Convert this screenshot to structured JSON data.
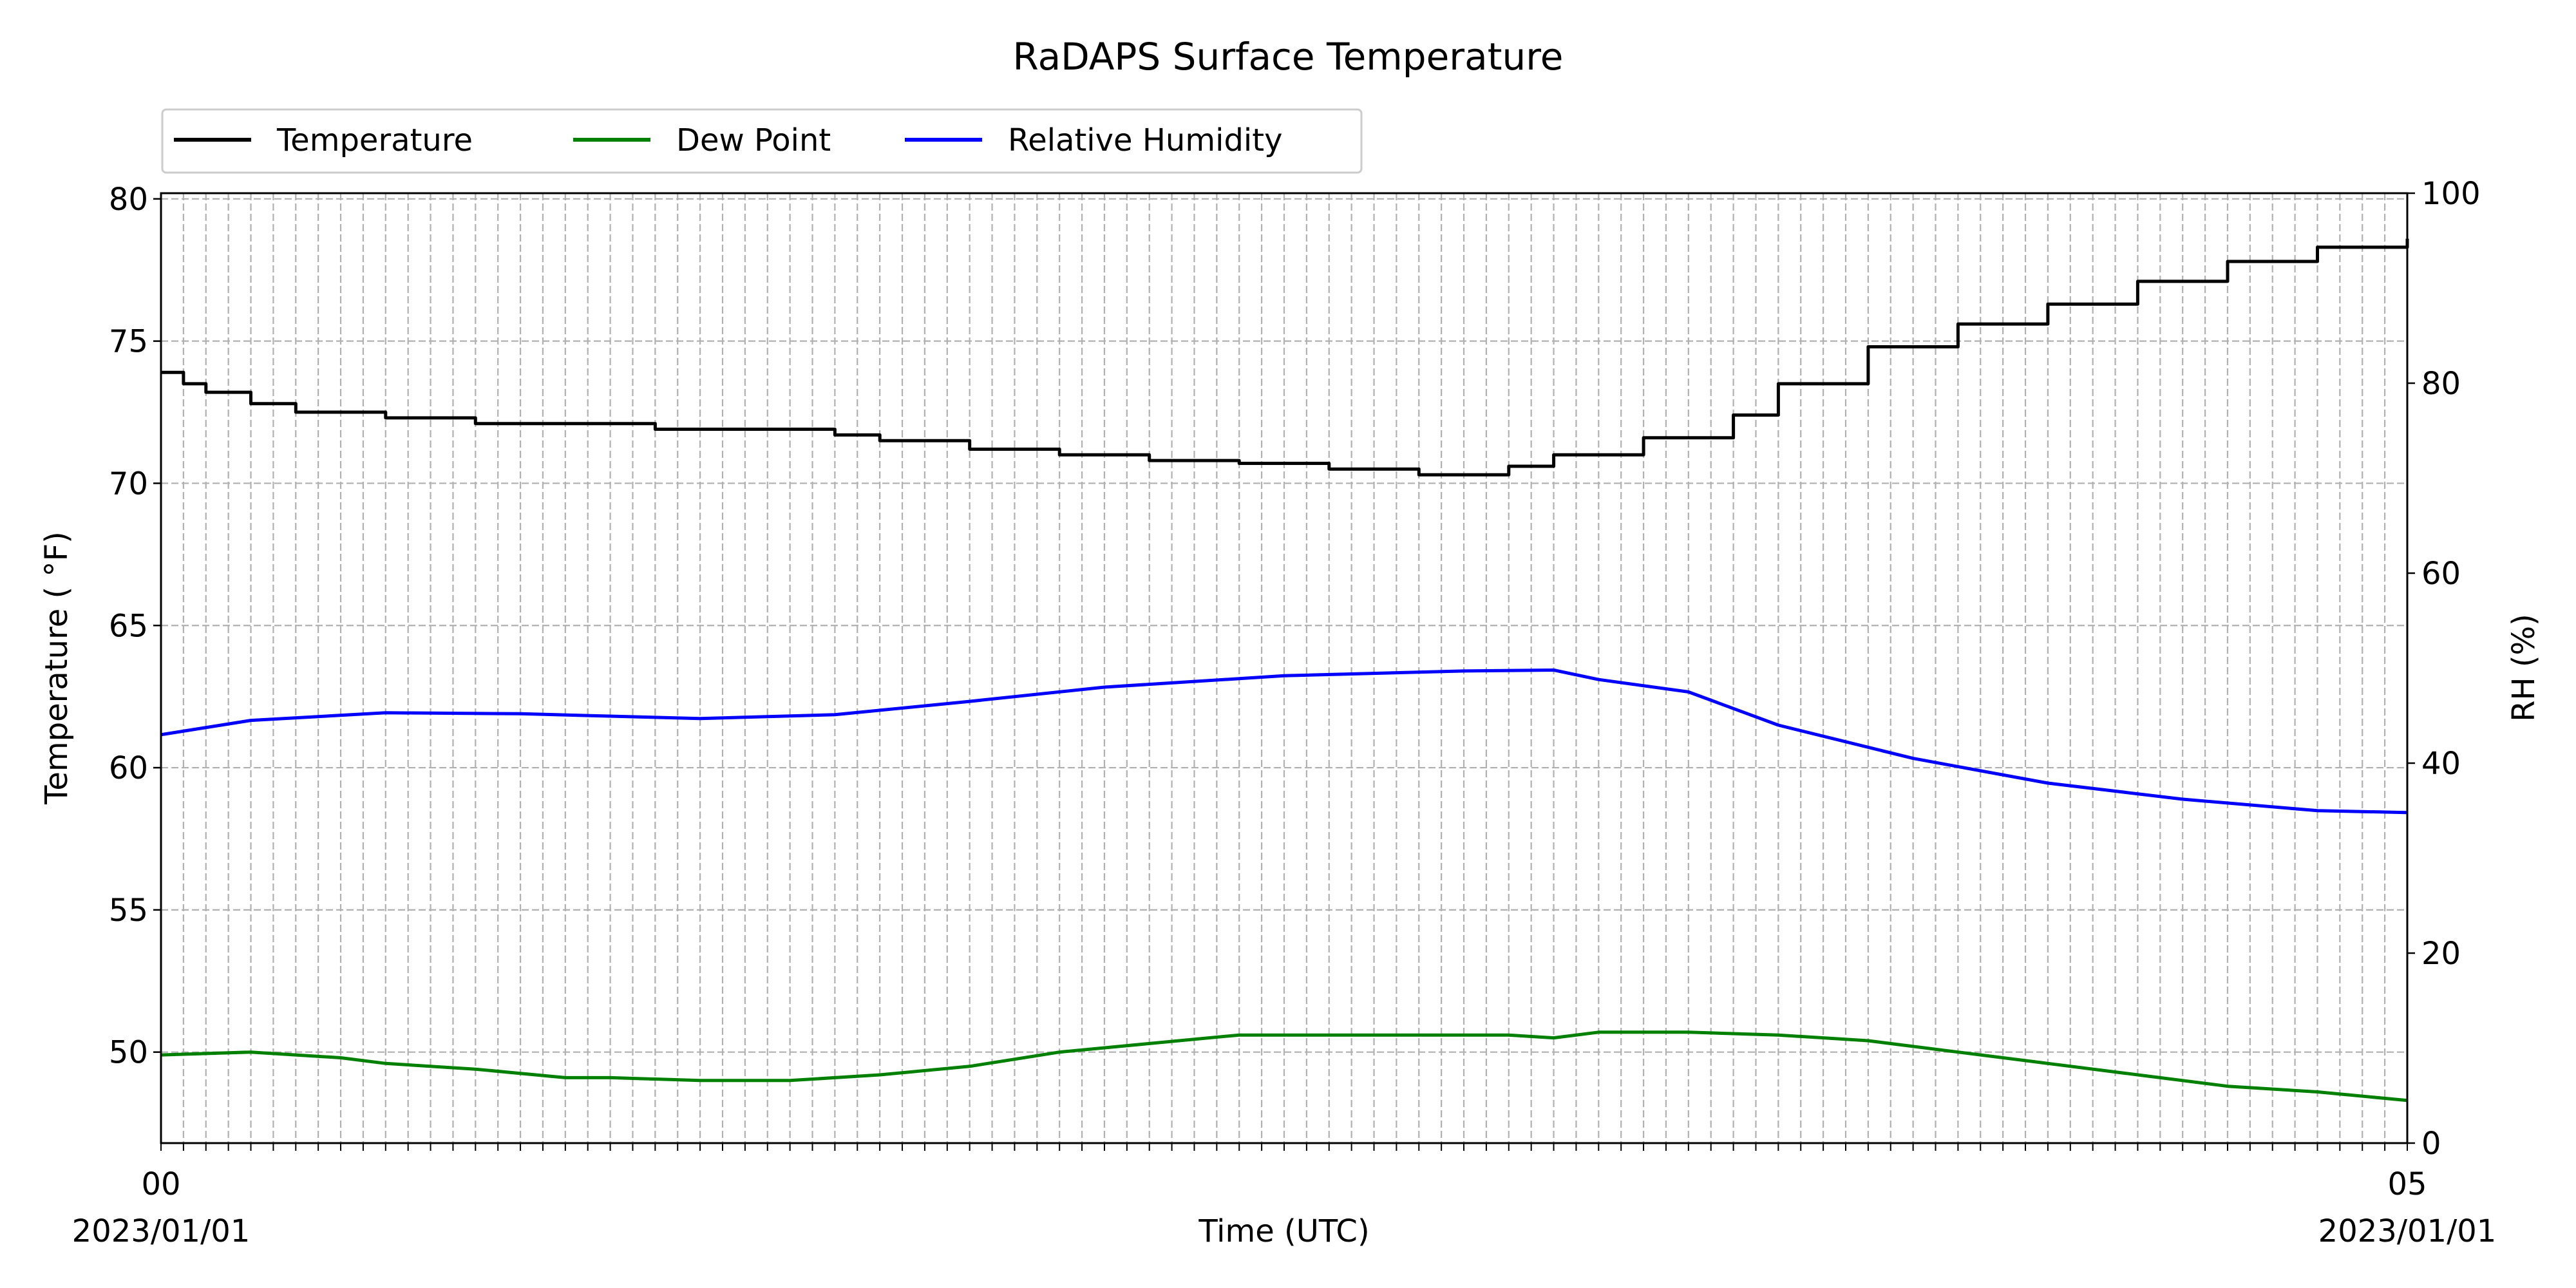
{
  "chart_data": {
    "type": "line",
    "title": "RaDAPS Surface Temperature",
    "xlabel": "Time (UTC)",
    "ylabel_left": "Temperature ( °F)",
    "ylabel_right": "RH (%)",
    "date_left": "2023/01/01",
    "date_right": "2023/01/01",
    "x_tick_labels": [
      "00:00",
      "00:05"
    ],
    "x_tick_labels_display": [
      "00",
      "05"
    ],
    "x_range_minutes": [
      0,
      5
    ],
    "ylim_left": [
      46.8,
      80.2
    ],
    "ylim_right": [
      0,
      100
    ],
    "yticks_left": [
      50,
      55,
      60,
      65,
      70,
      75,
      80
    ],
    "yticks_right": [
      0,
      20,
      40,
      60,
      80,
      100
    ],
    "grid": true,
    "legend": {
      "placement": "top-left, above plot",
      "entries": [
        "Temperature",
        "Dew Point",
        "Relative Humidity"
      ]
    },
    "colors": {
      "Temperature": "#000000",
      "Dew Point": "#008000",
      "Relative Humidity": "#0000ff"
    },
    "series": [
      {
        "name": "Temperature",
        "axis": "left",
        "x": [
          0,
          0.05,
          0.1,
          0.2,
          0.3,
          0.5,
          0.7,
          1.0,
          1.1,
          1.3,
          1.5,
          1.6,
          1.8,
          2.0,
          2.2,
          2.4,
          2.5,
          2.6,
          2.65,
          2.8,
          2.9,
          3.0,
          3.1,
          3.3,
          3.5,
          3.6,
          3.8,
          4.0,
          4.2,
          4.4,
          4.6,
          4.8,
          5.0
        ],
        "y": [
          73.9,
          73.5,
          73.2,
          72.8,
          72.5,
          72.3,
          72.1,
          72.1,
          71.9,
          71.9,
          71.7,
          71.5,
          71.2,
          71.0,
          70.8,
          70.7,
          70.7,
          70.5,
          70.5,
          70.3,
          70.3,
          70.6,
          71.0,
          71.6,
          72.4,
          73.5,
          74.8,
          75.6,
          76.3,
          77.1,
          77.8,
          78.3,
          78.6
        ]
      },
      {
        "name": "Dew Point",
        "axis": "left",
        "x": [
          0,
          0.2,
          0.4,
          0.5,
          0.7,
          0.9,
          1.0,
          1.2,
          1.4,
          1.6,
          1.8,
          2.0,
          2.2,
          2.4,
          2.6,
          2.8,
          3.0,
          3.1,
          3.2,
          3.4,
          3.6,
          3.8,
          4.0,
          4.2,
          4.4,
          4.6,
          4.8,
          5.0
        ],
        "y": [
          49.9,
          50.0,
          49.8,
          49.6,
          49.4,
          49.1,
          49.1,
          49.0,
          49.0,
          49.2,
          49.5,
          50.0,
          50.3,
          50.6,
          50.6,
          50.6,
          50.6,
          50.5,
          50.7,
          50.7,
          50.6,
          50.4,
          50.0,
          49.6,
          49.2,
          48.8,
          48.6,
          48.3
        ]
      },
      {
        "name": "Relative Humidity",
        "axis": "right",
        "x": [
          0,
          0.2,
          0.5,
          0.8,
          1.2,
          1.5,
          1.8,
          2.1,
          2.5,
          2.9,
          3.1,
          3.2,
          3.4,
          3.6,
          3.9,
          4.2,
          4.5,
          4.8,
          5.0
        ],
        "y": [
          43.0,
          44.5,
          45.3,
          45.2,
          44.7,
          45.1,
          46.5,
          48.0,
          49.2,
          49.7,
          49.8,
          48.8,
          47.5,
          44.0,
          40.5,
          37.9,
          36.2,
          35.0,
          34.8
        ]
      }
    ]
  }
}
